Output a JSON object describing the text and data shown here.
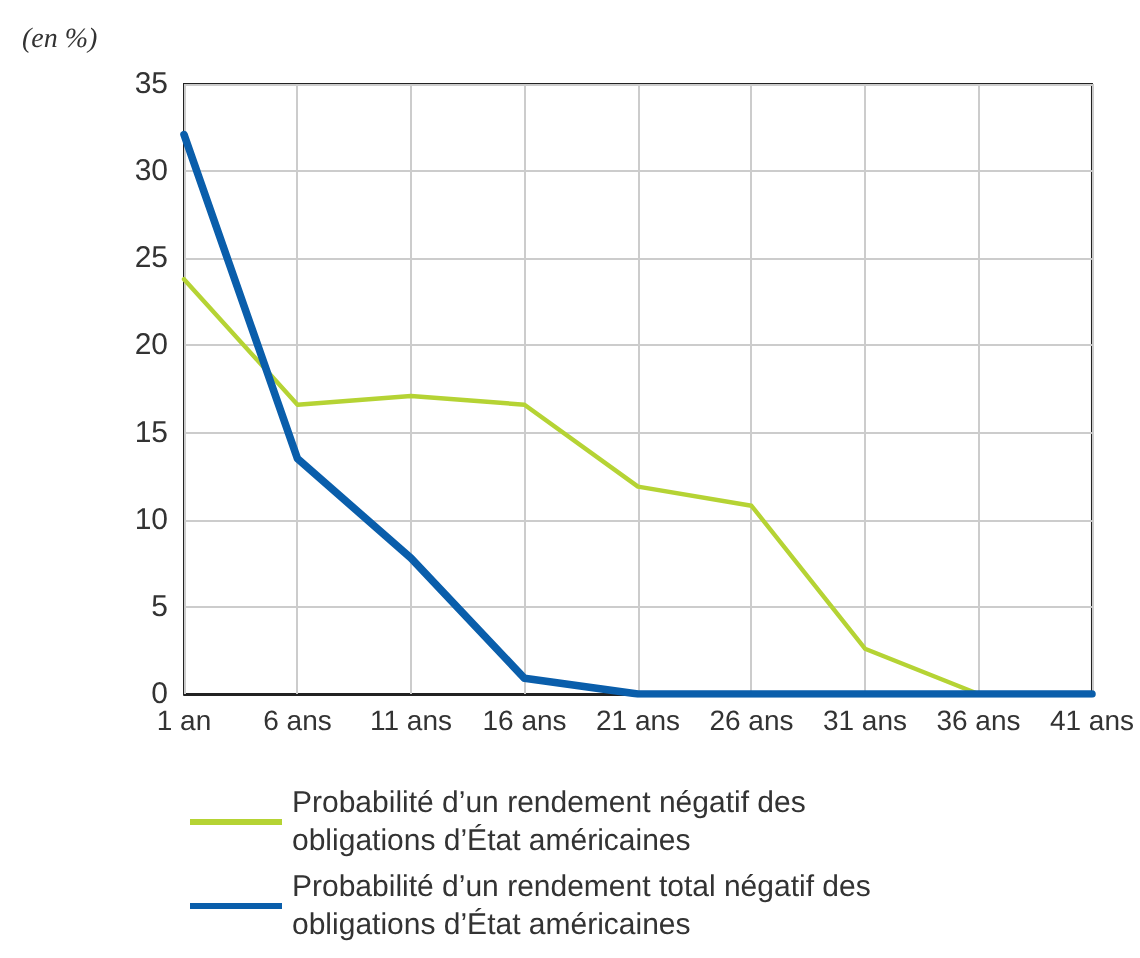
{
  "chart_data": {
    "type": "line",
    "ylabel": "(en %)",
    "categories": [
      "1 an",
      "6 ans",
      "11 ans",
      "16 ans",
      "21 ans",
      "26 ans",
      "31 ans",
      "36 ans",
      "41 ans"
    ],
    "series": [
      {
        "name": "Probabilité d’un rendement négatif des obligations d’État américaines",
        "color": "#b5d334",
        "values": [
          23.8,
          16.6,
          17.1,
          16.6,
          11.9,
          10.8,
          2.6,
          0,
          0
        ]
      },
      {
        "name": "Probabilité d’un rendement total négatif des obligations d’État américaines",
        "color": "#0a5eab",
        "values": [
          32.1,
          13.5,
          7.8,
          0.9,
          0,
          0,
          0,
          0,
          0
        ]
      }
    ],
    "ylim": [
      0,
      35
    ],
    "yticks": [
      0,
      5,
      10,
      15,
      20,
      25,
      30,
      35
    ],
    "grid": true,
    "legend": "bottom",
    "marker": "none",
    "line_style": "solid"
  }
}
